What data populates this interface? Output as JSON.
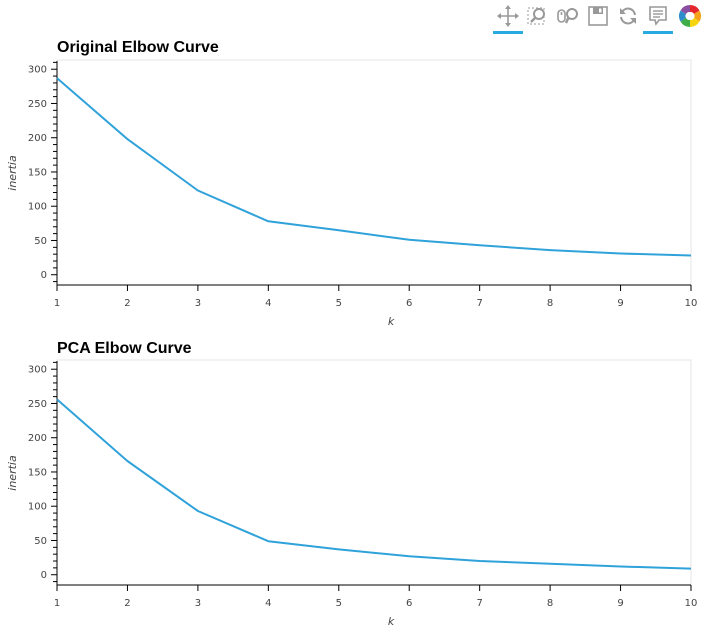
{
  "toolbar": {
    "tools": [
      {
        "name": "pan-tool",
        "icon": "pan-icon",
        "active": true
      },
      {
        "name": "box-zoom-tool",
        "icon": "box-zoom-icon",
        "active": false
      },
      {
        "name": "wheel-zoom-tool",
        "icon": "wheel-zoom-icon",
        "active": false
      },
      {
        "name": "save-tool",
        "icon": "save-icon",
        "active": false
      },
      {
        "name": "reset-tool",
        "icon": "reset-icon",
        "active": false
      },
      {
        "name": "hover-tool",
        "icon": "hover-icon",
        "active": true
      },
      {
        "name": "bokeh-logo",
        "icon": "bokeh-logo-icon",
        "active": false
      }
    ],
    "active_color": "#26aae1"
  },
  "chart_data": [
    {
      "type": "line",
      "title": "Original Elbow Curve",
      "xlabel": "k",
      "ylabel": "inertia",
      "x": [
        1,
        2,
        3,
        4,
        5,
        6,
        7,
        8,
        9,
        10
      ],
      "series": [
        {
          "values": [
            287,
            198,
            123,
            78,
            65,
            51,
            43,
            36,
            31,
            28
          ]
        }
      ],
      "xlim": [
        1,
        10
      ],
      "ylim": [
        -15,
        312
      ],
      "xticks": [
        1,
        2,
        3,
        4,
        5,
        6,
        7,
        8,
        9,
        10
      ],
      "yticks": [
        0,
        50,
        100,
        150,
        200,
        250,
        300
      ],
      "line_color": "#30a2da",
      "grid": false
    },
    {
      "type": "line",
      "title": "PCA Elbow Curve",
      "xlabel": "k",
      "ylabel": "inertia",
      "x": [
        1,
        2,
        3,
        4,
        5,
        6,
        7,
        8,
        9,
        10
      ],
      "series": [
        {
          "values": [
            256,
            166,
            93,
            49,
            37,
            27,
            20,
            16,
            12,
            9
          ]
        }
      ],
      "xlim": [
        1,
        10
      ],
      "ylim": [
        -15,
        312
      ],
      "xticks": [
        1,
        2,
        3,
        4,
        5,
        6,
        7,
        8,
        9,
        10
      ],
      "yticks": [
        0,
        50,
        100,
        150,
        200,
        250,
        300
      ],
      "line_color": "#30a2da",
      "grid": false
    }
  ]
}
